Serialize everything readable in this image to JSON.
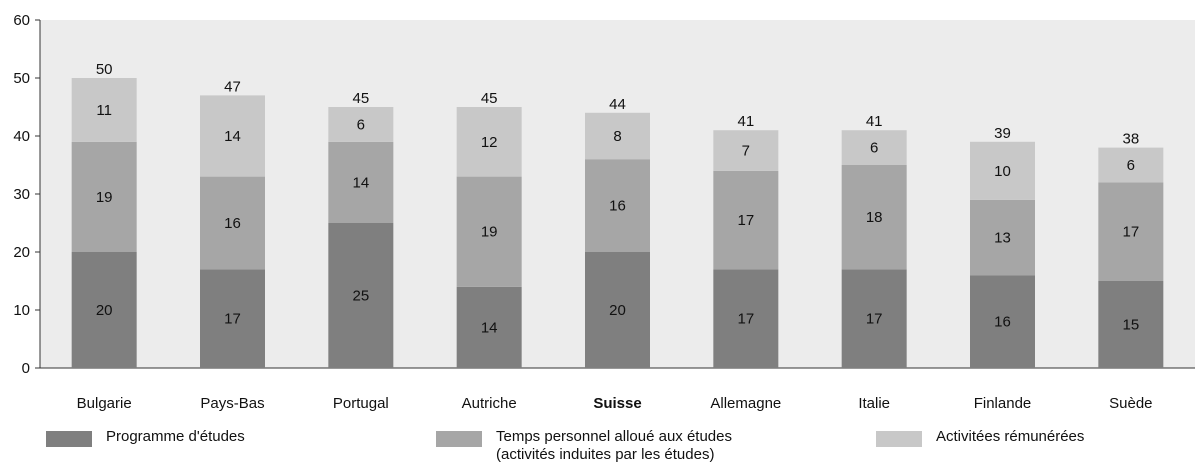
{
  "chart_data": {
    "type": "bar",
    "stacked": true,
    "categories": [
      "Bulgarie",
      "Pays-Bas",
      "Portugal",
      "Autriche",
      "Suisse",
      "Allemagne",
      "Italie",
      "Finlande",
      "Suède"
    ],
    "highlighted_category": "Suisse",
    "series": [
      {
        "name": "Programme d'études",
        "color": "#7f7f7f",
        "values": [
          20,
          17,
          25,
          14,
          20,
          17,
          17,
          16,
          15
        ]
      },
      {
        "name": "Temps personnel alloué aux études",
        "name_line2": "(activités induites par les études)",
        "color": "#a6a6a6",
        "values": [
          19,
          16,
          14,
          19,
          16,
          17,
          18,
          13,
          17
        ]
      },
      {
        "name": "Activitées rémunérées",
        "color": "#c8c8c8",
        "values": [
          11,
          14,
          6,
          12,
          8,
          7,
          6,
          10,
          6
        ]
      }
    ],
    "totals": [
      50,
      47,
      45,
      45,
      44,
      41,
      41,
      39,
      38
    ],
    "ylim": [
      0,
      60
    ],
    "yticks": [
      0,
      10,
      20,
      30,
      40,
      50,
      60
    ],
    "grid": false,
    "plot_background": "#ececec",
    "legend_position": "bottom",
    "title": "",
    "xlabel": "",
    "ylabel": ""
  }
}
